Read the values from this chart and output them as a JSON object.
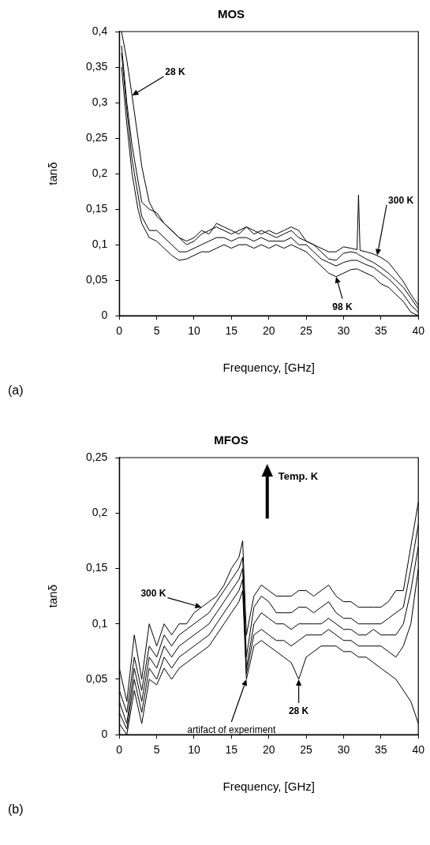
{
  "chart_data": [
    {
      "type": "line",
      "title": "MOS",
      "xlabel": "Frequency, [GHz]",
      "ylabel": "tanδ",
      "marker": "none",
      "x": [
        0.3,
        1,
        1.7,
        2.5,
        3,
        4,
        5,
        6,
        7,
        8,
        9,
        10,
        11,
        12,
        13,
        14,
        15,
        16,
        17,
        18,
        19,
        20,
        21,
        22,
        23,
        24,
        25,
        26,
        27,
        28,
        29,
        30,
        31,
        31.8,
        32,
        32.2,
        33,
        34,
        35,
        36,
        37,
        38,
        39,
        40
      ],
      "series": [
        {
          "color": "#000000",
          "values": [
            0.4,
            0.36,
            0.31,
            0.25,
            0.21,
            0.16,
            0.14,
            0.13,
            0.12,
            0.11,
            0.105,
            0.11,
            0.12,
            0.115,
            0.13,
            0.125,
            0.12,
            0.115,
            0.125,
            0.12,
            0.115,
            0.12,
            0.115,
            0.12,
            0.125,
            0.12,
            0.105,
            0.1,
            0.09,
            0.08,
            0.078,
            0.088,
            0.09,
            0.088,
            0.086,
            0.085,
            0.08,
            0.075,
            0.068,
            0.06,
            0.05,
            0.04,
            0.025,
            0.01
          ]
        },
        {
          "color": "#000000",
          "values": [
            0.38,
            0.3,
            0.24,
            0.19,
            0.16,
            0.15,
            0.145,
            0.13,
            0.12,
            0.11,
            0.1,
            0.105,
            0.115,
            0.12,
            0.125,
            0.12,
            0.115,
            0.12,
            0.125,
            0.115,
            0.12,
            0.115,
            0.11,
            0.115,
            0.12,
            0.11,
            0.105,
            0.1,
            0.095,
            0.09,
            0.09,
            0.097,
            0.095,
            0.093,
            0.17,
            0.092,
            0.09,
            0.087,
            0.082,
            0.075,
            0.062,
            0.048,
            0.03,
            0.015
          ]
        },
        {
          "color": "#000000",
          "values": [
            0.37,
            0.29,
            0.22,
            0.17,
            0.14,
            0.12,
            0.12,
            0.11,
            0.1,
            0.09,
            0.09,
            0.095,
            0.1,
            0.105,
            0.11,
            0.11,
            0.105,
            0.11,
            0.11,
            0.105,
            0.11,
            0.105,
            0.105,
            0.105,
            0.11,
            0.1,
            0.1,
            0.09,
            0.08,
            0.075,
            0.07,
            0.075,
            0.078,
            0.078,
            0.077,
            0.076,
            0.072,
            0.068,
            0.06,
            0.052,
            0.042,
            0.03,
            0.015,
            0.005
          ]
        },
        {
          "color": "#000000",
          "values": [
            0.35,
            0.27,
            0.2,
            0.15,
            0.13,
            0.11,
            0.105,
            0.095,
            0.085,
            0.078,
            0.08,
            0.085,
            0.09,
            0.09,
            0.095,
            0.1,
            0.095,
            0.1,
            0.1,
            0.095,
            0.1,
            0.095,
            0.1,
            0.095,
            0.1,
            0.095,
            0.09,
            0.08,
            0.07,
            0.06,
            0.055,
            0.06,
            0.065,
            0.066,
            0.065,
            0.064,
            0.06,
            0.055,
            0.045,
            0.04,
            0.03,
            0.02,
            0.005,
            0
          ]
        }
      ],
      "xlim": [
        0,
        40
      ],
      "xticks": [
        0,
        5,
        10,
        15,
        20,
        25,
        30,
        35,
        40
      ],
      "ylim": [
        0,
        0.4
      ],
      "yticks": [
        0,
        {
          "value": 0.05,
          "label": "0,05"
        },
        {
          "value": 0.1,
          "label": "0,1"
        },
        {
          "value": 0.15,
          "label": "0,15"
        },
        {
          "value": 0.2,
          "label": "0,2"
        },
        {
          "value": 0.25,
          "label": "0,25"
        },
        {
          "value": 0.3,
          "label": "0,3"
        },
        {
          "value": 0.35,
          "label": "0,35"
        },
        {
          "value": 0.4,
          "label": "0,4"
        }
      ],
      "annotations": [
        {
          "text": "28 K",
          "x": 1.7,
          "y": 0.31
        },
        {
          "text": "300 K",
          "x": 34.5,
          "y": 0.085
        },
        {
          "text": "98 K",
          "x": 29,
          "y": 0.055
        },
        "(a)"
      ]
    },
    {
      "type": "line",
      "title": "MFOS",
      "xlabel": "Frequency, [GHz]",
      "ylabel": "tanδ",
      "marker": "none",
      "x": [
        0,
        1,
        2,
        3,
        4,
        5,
        6,
        7,
        8,
        9,
        10,
        11,
        12,
        13,
        14,
        15,
        16,
        16.5,
        17,
        18,
        19,
        20,
        21,
        22,
        23,
        24,
        25,
        26,
        27,
        28,
        29,
        30,
        31,
        32,
        33,
        34,
        35,
        36,
        37,
        38,
        39,
        40
      ],
      "series": [
        {
          "color": "#000000",
          "values": [
            0.06,
            0.03,
            0.09,
            0.05,
            0.1,
            0.08,
            0.1,
            0.09,
            0.1,
            0.1,
            0.11,
            0.115,
            0.12,
            0.125,
            0.135,
            0.15,
            0.16,
            0.175,
            0.09,
            0.125,
            0.135,
            0.13,
            0.125,
            0.125,
            0.125,
            0.13,
            0.13,
            0.125,
            0.13,
            0.135,
            0.125,
            0.12,
            0.12,
            0.115,
            0.115,
            0.115,
            0.115,
            0.12,
            0.13,
            0.13,
            0.17,
            0.21
          ]
        },
        {
          "color": "#000000",
          "values": [
            0.04,
            0.02,
            0.07,
            0.04,
            0.08,
            0.07,
            0.09,
            0.08,
            0.09,
            0.095,
            0.1,
            0.105,
            0.11,
            0.12,
            0.13,
            0.14,
            0.15,
            0.16,
            0.07,
            0.115,
            0.125,
            0.12,
            0.11,
            0.11,
            0.11,
            0.115,
            0.115,
            0.11,
            0.115,
            0.12,
            0.11,
            0.105,
            0.105,
            0.1,
            0.1,
            0.1,
            0.1,
            0.105,
            0.11,
            0.115,
            0.15,
            0.19
          ]
        },
        {
          "color": "#000000",
          "values": [
            0.03,
            0.01,
            0.06,
            0.03,
            0.07,
            0.06,
            0.08,
            0.07,
            0.08,
            0.085,
            0.09,
            0.095,
            0.1,
            0.11,
            0.12,
            0.13,
            0.14,
            0.15,
            0.06,
            0.1,
            0.11,
            0.105,
            0.1,
            0.1,
            0.095,
            0.1,
            0.1,
            0.1,
            0.1,
            0.105,
            0.1,
            0.095,
            0.095,
            0.09,
            0.09,
            0.095,
            0.09,
            0.09,
            0.09,
            0.1,
            0.13,
            0.17
          ]
        },
        {
          "color": "#000000",
          "values": [
            0.02,
            0.005,
            0.05,
            0.02,
            0.06,
            0.05,
            0.07,
            0.06,
            0.07,
            0.075,
            0.08,
            0.085,
            0.09,
            0.1,
            0.11,
            0.12,
            0.13,
            0.14,
            0.055,
            0.09,
            0.095,
            0.09,
            0.085,
            0.085,
            0.08,
            0.085,
            0.09,
            0.09,
            0.09,
            0.095,
            0.09,
            0.085,
            0.085,
            0.08,
            0.08,
            0.08,
            0.08,
            0.075,
            0.07,
            0.08,
            0.1,
            0.15
          ]
        },
        {
          "color": "#000000",
          "values": [
            0.01,
            0,
            0.04,
            0.01,
            0.05,
            0.045,
            0.06,
            0.05,
            0.06,
            0.065,
            0.07,
            0.075,
            0.08,
            0.09,
            0.1,
            0.11,
            0.12,
            0.13,
            0.05,
            0.08,
            0.085,
            0.08,
            0.075,
            0.07,
            0.065,
            0.05,
            0.07,
            0.075,
            0.08,
            0.08,
            0.08,
            0.075,
            0.075,
            0.07,
            0.07,
            0.065,
            0.06,
            0.055,
            0.05,
            0.04,
            0.03,
            0.01
          ]
        }
      ],
      "xlim": [
        0,
        40
      ],
      "xticks": [
        0,
        5,
        10,
        15,
        20,
        25,
        30,
        35,
        40
      ],
      "ylim": [
        0,
        0.25
      ],
      "yticks": [
        0,
        {
          "value": 0.05,
          "label": "0,05"
        },
        {
          "value": 0.1,
          "label": "0,1"
        },
        {
          "value": 0.15,
          "label": "0,15"
        },
        {
          "value": 0.2,
          "label": "0,2"
        },
        {
          "value": 0.25,
          "label": "0,25"
        }
      ],
      "annotations": [
        {
          "text": "300 K",
          "x": 11,
          "y": 0.115
        },
        {
          "text": "artifact of experiment",
          "x": 17,
          "y": 0.05
        },
        {
          "text": "28 K",
          "x": 24,
          "y": 0.05
        },
        "Temp. K",
        "(b)"
      ]
    }
  ]
}
